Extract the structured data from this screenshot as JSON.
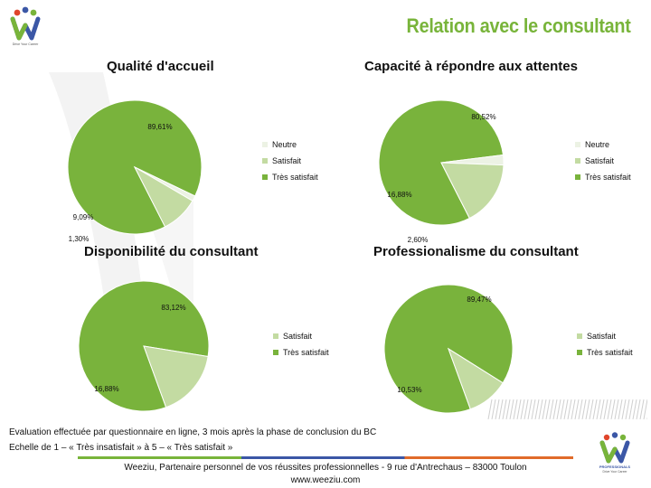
{
  "header": {
    "title": "Relation avec le consultant"
  },
  "legend_colors": {
    "Neutre": "#ecf2e4",
    "Satisfait": "#c3dba2",
    "Très satisfait": "#79b33c"
  },
  "chart_data": [
    {
      "type": "pie",
      "title": "Qualité d'accueil",
      "legend_position": "right",
      "slices": [
        {
          "label": "Très satisfait",
          "value": 89.61,
          "display": "89,61%"
        },
        {
          "label": "Neutre",
          "value": 1.3,
          "display": "1,30%"
        },
        {
          "label": "Satisfait",
          "value": 9.09,
          "display": "9,09%"
        }
      ],
      "legend": [
        "Neutre",
        "Satisfait",
        "Très satisfait"
      ]
    },
    {
      "type": "pie",
      "title": "Capacité à répondre aux attentes",
      "legend_position": "right",
      "slices": [
        {
          "label": "Très satisfait",
          "value": 80.52,
          "display": "80,52%"
        },
        {
          "label": "Neutre",
          "value": 2.6,
          "display": "2,60%"
        },
        {
          "label": "Satisfait",
          "value": 16.88,
          "display": "16,88%"
        }
      ],
      "legend": [
        "Neutre",
        "Satisfait",
        "Très satisfait"
      ]
    },
    {
      "type": "pie",
      "title": "Disponibilité du consultant",
      "legend_position": "right",
      "slices": [
        {
          "label": "Très satisfait",
          "value": 83.12,
          "display": "83,12%"
        },
        {
          "label": "Satisfait",
          "value": 16.88,
          "display": "16,88%"
        }
      ],
      "legend": [
        "Satisfait",
        "Très satisfait"
      ]
    },
    {
      "type": "pie",
      "title": "Professionalisme du consultant",
      "legend_position": "right",
      "slices": [
        {
          "label": "Très satisfait",
          "value": 89.47,
          "display": "89,47%"
        },
        {
          "label": "Satisfait",
          "value": 10.53,
          "display": "10,53%"
        }
      ],
      "legend": [
        "Satisfait",
        "Très satisfait"
      ]
    }
  ],
  "footer": {
    "note_line1": "Evaluation effectuée par questionnaire en ligne, 3 mois après la phase de conclusion du BC",
    "note_line2": "Echelle de 1 – « Très insatisfait » à 5 – « Très satisfait »",
    "company_line": "Weeziu, Partenaire personnel de vos réussites professionnelles - 9 rue d'Antrechaus – 83000 Toulon",
    "website": "www.weeziu.com"
  },
  "logo": {
    "top_tagline": "Drive Your Career",
    "bottom_tagline": "PROFESSIONALS",
    "bottom_sub": "Drive Your Career"
  }
}
